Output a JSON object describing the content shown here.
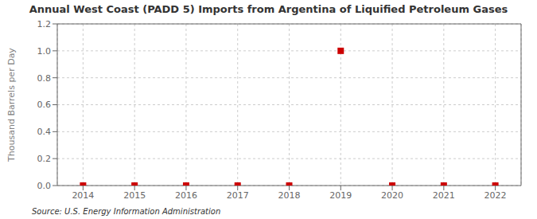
{
  "chart_data": {
    "type": "scatter",
    "title": "Annual West Coast (PADD 5) Imports from Argentina of Liquified Petroleum Gases",
    "y_label": "Thousand Barrels per Day",
    "annotations": [
      "Source: U.S. Energy Information Administration"
    ],
    "x": [
      2014,
      2015,
      2016,
      2017,
      2018,
      2019,
      2020,
      2021,
      2022
    ],
    "values": [
      0.0,
      0.0,
      0.0,
      0.0,
      0.0,
      1.0,
      0.0,
      0.0,
      0.0
    ],
    "color": "#cc0000",
    "marker": "square",
    "xlim": [
      2013.5,
      2022.5
    ],
    "xticks": [
      2014,
      2015,
      2016,
      2017,
      2018,
      2019,
      2020,
      2021,
      2022
    ],
    "ylim": [
      0.0,
      1.2
    ],
    "yticks": [
      {
        "value": 0,
        "label": "0.0"
      },
      0.2,
      0.4,
      0.6,
      0.8,
      {
        "value": 1,
        "label": "1.0"
      },
      1.2
    ],
    "grid": true
  }
}
